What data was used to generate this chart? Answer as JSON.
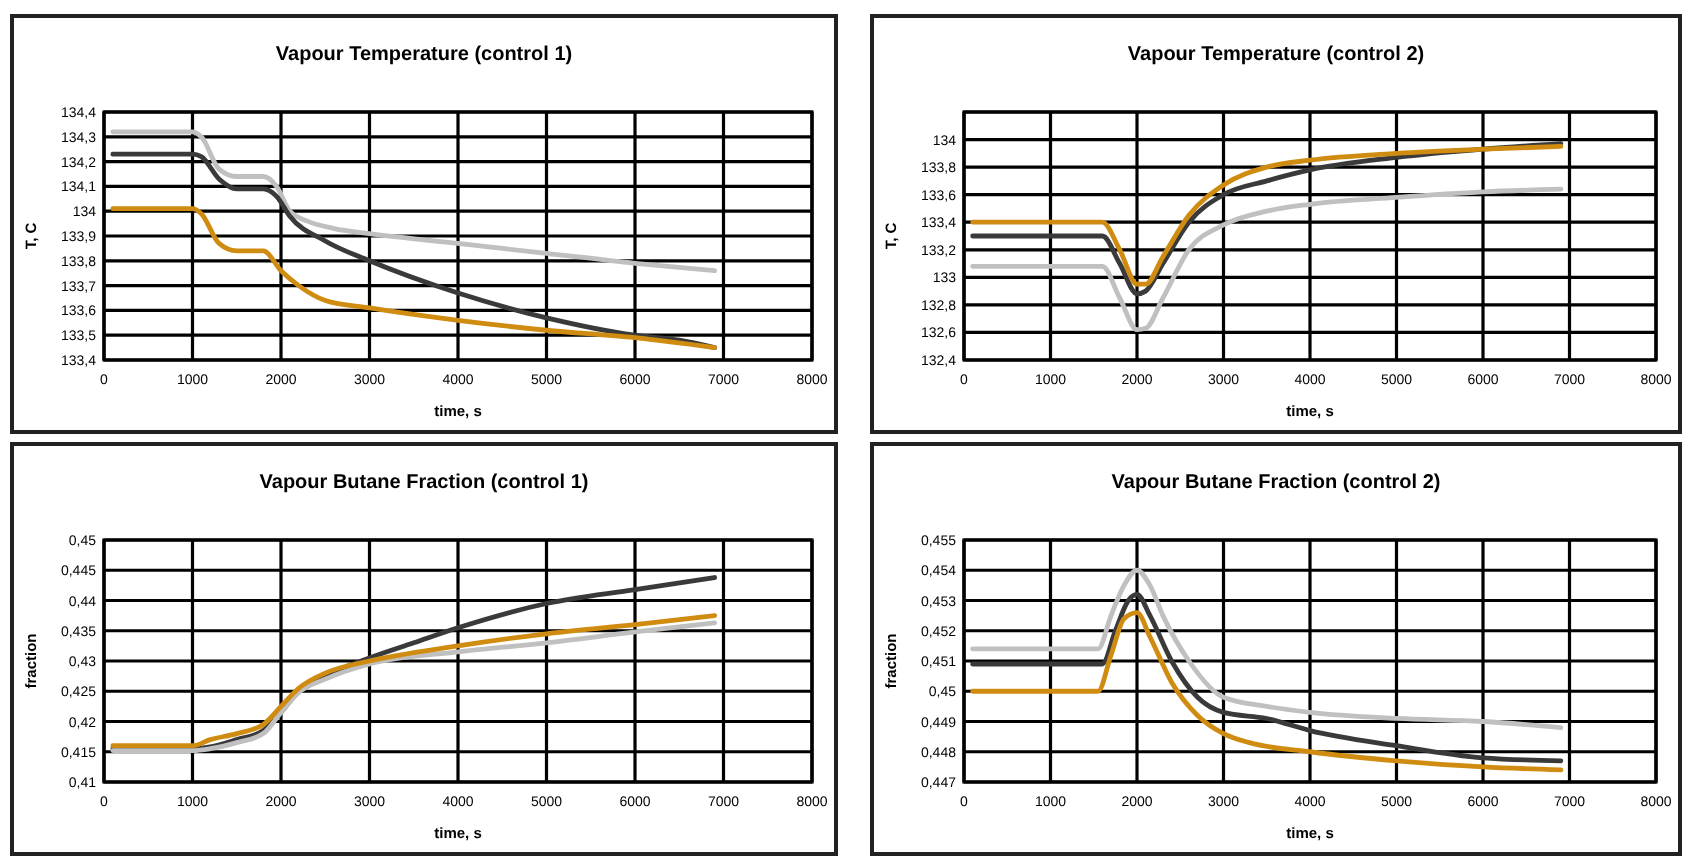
{
  "chart_data": [
    {
      "type": "line",
      "title": "Vapour Temperature (control 1)",
      "xlabel": "time, s",
      "ylabel": "T, C",
      "grid": true,
      "xlim": [
        0,
        8000
      ],
      "xticks": [
        0,
        1000,
        2000,
        3000,
        4000,
        5000,
        6000,
        7000,
        8000
      ],
      "ylim": [
        133.4,
        134.4
      ],
      "yticks": [
        {
          "value": 133.4,
          "label": "133,4"
        },
        {
          "value": 133.5,
          "label": "133,5"
        },
        {
          "value": 133.6,
          "label": "133,6"
        },
        {
          "value": 133.7,
          "label": "133,7"
        },
        {
          "value": 133.8,
          "label": "133,8"
        },
        {
          "value": 133.9,
          "label": "133,9"
        },
        {
          "value": 134,
          "label": "134"
        },
        {
          "value": 134.1,
          "label": "134,1"
        },
        {
          "value": 134.2,
          "label": "134,2"
        },
        {
          "value": 134.3,
          "label": "134,3"
        },
        {
          "value": 134.4,
          "label": "134,4"
        }
      ],
      "series": [
        {
          "color": "#c0c0c0",
          "x": [
            100,
            1000,
            1100,
            1300,
            1500,
            1800,
            1950,
            2100,
            2300,
            2600,
            3000,
            4000,
            5000,
            6000,
            6900
          ],
          "values": [
            134.32,
            134.32,
            134.3,
            134.17,
            134.14,
            134.14,
            134.1,
            134.0,
            133.96,
            133.93,
            133.91,
            133.87,
            133.83,
            133.79,
            133.76
          ]
        },
        {
          "color": "#3a3a3a",
          "x": [
            100,
            1000,
            1100,
            1300,
            1500,
            1800,
            1950,
            2100,
            2500,
            3000,
            4000,
            5000,
            6000,
            6500,
            6900
          ],
          "values": [
            134.23,
            134.23,
            134.22,
            134.13,
            134.09,
            134.09,
            134.06,
            133.98,
            133.88,
            133.8,
            133.67,
            133.57,
            133.5,
            133.48,
            133.45
          ]
        },
        {
          "color": "#d08c10",
          "x": [
            100,
            1000,
            1100,
            1300,
            1500,
            1800,
            2000,
            2200,
            2500,
            3000,
            4000,
            5000,
            6000,
            6900
          ],
          "values": [
            134.01,
            134.01,
            133.99,
            133.87,
            133.84,
            133.84,
            133.76,
            133.7,
            133.64,
            133.61,
            133.56,
            133.52,
            133.49,
            133.45
          ]
        }
      ]
    },
    {
      "type": "line",
      "title": "Vapour Temperature (control 2)",
      "xlabel": "time, s",
      "ylabel": "T, C",
      "grid": true,
      "xlim": [
        0,
        8000
      ],
      "xticks": [
        0,
        1000,
        2000,
        3000,
        4000,
        5000,
        6000,
        7000,
        8000
      ],
      "ylim": [
        132.4,
        134.2
      ],
      "yticks": [
        {
          "value": 132.4,
          "label": "132,4"
        },
        {
          "value": 132.6,
          "label": "132,6"
        },
        {
          "value": 132.8,
          "label": "132,8"
        },
        {
          "value": 133,
          "label": "133"
        },
        {
          "value": 133.2,
          "label": "133,2"
        },
        {
          "value": 133.4,
          "label": "133,4"
        },
        {
          "value": 133.6,
          "label": "133,6"
        },
        {
          "value": 133.8,
          "label": "133,8"
        },
        {
          "value": 134,
          "label": "134"
        },
        {
          "value": 134.2,
          "label": null
        }
      ],
      "series": [
        {
          "color": "#c0c0c0",
          "x": [
            100,
            1600,
            1800,
            2000,
            2100,
            2300,
            2600,
            3000,
            3500,
            4000,
            5000,
            6000,
            6900
          ],
          "values": [
            133.08,
            133.08,
            132.85,
            132.62,
            132.63,
            132.85,
            133.2,
            133.38,
            133.48,
            133.53,
            133.58,
            133.62,
            133.64
          ]
        },
        {
          "color": "#3a3a3a",
          "x": [
            100,
            1600,
            1800,
            2000,
            2100,
            2300,
            2600,
            3000,
            3500,
            4000,
            5000,
            6000,
            6900
          ],
          "values": [
            133.3,
            133.3,
            133.1,
            132.88,
            132.9,
            133.1,
            133.4,
            133.6,
            133.7,
            133.78,
            133.87,
            133.93,
            133.97
          ]
        },
        {
          "color": "#d08c10",
          "x": [
            100,
            1600,
            1800,
            2000,
            2100,
            2300,
            2600,
            3000,
            3500,
            4000,
            5000,
            6000,
            6900
          ],
          "values": [
            133.4,
            133.4,
            133.2,
            132.95,
            132.95,
            133.15,
            133.45,
            133.67,
            133.8,
            133.85,
            133.9,
            133.93,
            133.95
          ]
        }
      ]
    },
    {
      "type": "line",
      "title": "Vapour Butane Fraction (control 1)",
      "xlabel": "time, s",
      "ylabel": "fraction",
      "grid": true,
      "xlim": [
        0,
        8000
      ],
      "xticks": [
        0,
        1000,
        2000,
        3000,
        4000,
        5000,
        6000,
        7000,
        8000
      ],
      "ylim": [
        0.41,
        0.45
      ],
      "yticks": [
        {
          "value": 0.41,
          "label": "0,41"
        },
        {
          "value": 0.415,
          "label": "0,415"
        },
        {
          "value": 0.42,
          "label": "0,42"
        },
        {
          "value": 0.425,
          "label": "0,425"
        },
        {
          "value": 0.43,
          "label": "0,43"
        },
        {
          "value": 0.435,
          "label": "0,435"
        },
        {
          "value": 0.44,
          "label": "0,44"
        },
        {
          "value": 0.445,
          "label": "0,445"
        },
        {
          "value": 0.45,
          "label": "0,45"
        }
      ],
      "series": [
        {
          "color": "#3a3a3a",
          "x": [
            100,
            1000,
            1200,
            1500,
            1800,
            2000,
            2200,
            2500,
            3000,
            3500,
            4000,
            5000,
            6000,
            6900
          ],
          "values": [
            0.4155,
            0.4155,
            0.4158,
            0.417,
            0.4185,
            0.4215,
            0.425,
            0.4275,
            0.4305,
            0.433,
            0.4355,
            0.4395,
            0.4418,
            0.4438
          ]
        },
        {
          "color": "#c0c0c0",
          "x": [
            100,
            1000,
            1200,
            1500,
            1800,
            2000,
            2200,
            2500,
            3000,
            4000,
            5000,
            6000,
            6900
          ],
          "values": [
            0.4152,
            0.4152,
            0.4155,
            0.4165,
            0.418,
            0.4215,
            0.4248,
            0.427,
            0.4295,
            0.4315,
            0.433,
            0.4348,
            0.4363
          ]
        },
        {
          "color": "#d08c10",
          "x": [
            100,
            1000,
            1200,
            1500,
            1800,
            2000,
            2200,
            2500,
            3000,
            4000,
            5000,
            6000,
            6900
          ],
          "values": [
            0.416,
            0.416,
            0.417,
            0.418,
            0.4195,
            0.4225,
            0.4255,
            0.428,
            0.43,
            0.4325,
            0.4345,
            0.436,
            0.4375
          ]
        }
      ]
    },
    {
      "type": "line",
      "title": "Vapour Butane Fraction (control 2)",
      "xlabel": "time, s",
      "ylabel": "fraction",
      "grid": true,
      "xlim": [
        0,
        8000
      ],
      "xticks": [
        0,
        1000,
        2000,
        3000,
        4000,
        5000,
        6000,
        7000,
        8000
      ],
      "ylim": [
        0.447,
        0.455
      ],
      "yticks": [
        {
          "value": 0.447,
          "label": "0,447"
        },
        {
          "value": 0.448,
          "label": "0,448"
        },
        {
          "value": 0.449,
          "label": "0,449"
        },
        {
          "value": 0.45,
          "label": "0,45"
        },
        {
          "value": 0.451,
          "label": "0,451"
        },
        {
          "value": 0.452,
          "label": "0,452"
        },
        {
          "value": 0.453,
          "label": "0,453"
        },
        {
          "value": 0.454,
          "label": "0,454"
        },
        {
          "value": 0.455,
          "label": "0,455"
        }
      ],
      "series": [
        {
          "color": "#c0c0c0",
          "x": [
            100,
            1550,
            1700,
            1850,
            2000,
            2150,
            2300,
            2600,
            3000,
            3500,
            4000,
            5000,
            6000,
            6900
          ],
          "values": [
            0.4514,
            0.4514,
            0.4525,
            0.4535,
            0.454,
            0.4535,
            0.4525,
            0.451,
            0.4498,
            0.4495,
            0.4493,
            0.4491,
            0.449,
            0.4488
          ]
        },
        {
          "color": "#3a3a3a",
          "x": [
            100,
            1600,
            1750,
            1900,
            2000,
            2150,
            2400,
            2700,
            3000,
            3500,
            4000,
            5000,
            6000,
            6900
          ],
          "values": [
            0.4509,
            0.4509,
            0.452,
            0.453,
            0.4532,
            0.4525,
            0.451,
            0.4498,
            0.4493,
            0.4491,
            0.4487,
            0.4482,
            0.4478,
            0.4477
          ]
        },
        {
          "color": "#d08c10",
          "x": [
            100,
            1550,
            1700,
            1850,
            2000,
            2150,
            2400,
            2700,
            3000,
            3300,
            4000,
            5000,
            6000,
            6900
          ],
          "values": [
            0.45,
            0.45,
            0.4512,
            0.4524,
            0.4526,
            0.4518,
            0.4503,
            0.4492,
            0.4486,
            0.4483,
            0.448,
            0.4477,
            0.4475,
            0.4474
          ]
        }
      ]
    }
  ]
}
